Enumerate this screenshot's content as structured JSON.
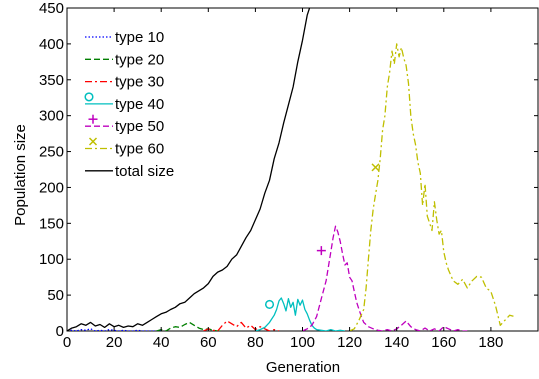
{
  "chart_data": {
    "type": "line",
    "title": "",
    "xlabel": "Generation",
    "ylabel": "Population size",
    "xlim": [
      0,
      200
    ],
    "ylim": [
      0,
      450
    ],
    "xticks": [
      0,
      20,
      40,
      60,
      80,
      100,
      120,
      140,
      160,
      180
    ],
    "yticks": [
      0,
      50,
      100,
      150,
      200,
      250,
      300,
      350,
      400,
      450
    ],
    "grid": false,
    "legend_position": "top-left",
    "series": [
      {
        "name": "type 10",
        "color": "#0000ff",
        "linestyle": "dotted",
        "marker": "",
        "x": [
          0,
          2,
          4,
          6,
          8,
          10,
          12,
          14,
          16,
          18,
          20,
          22,
          24,
          26,
          28,
          30,
          32,
          34,
          36,
          38,
          40
        ],
        "y": [
          0,
          1,
          0,
          2,
          1,
          3,
          0,
          1,
          0,
          2,
          1,
          0,
          1,
          0,
          0,
          1,
          0,
          0,
          0,
          0,
          0
        ]
      },
      {
        "name": "type 20",
        "color": "#007f00",
        "linestyle": "dashed",
        "marker": "",
        "x": [
          38,
          40,
          42,
          44,
          46,
          48,
          50,
          52,
          54,
          56,
          58,
          60,
          62,
          64,
          66
        ],
        "y": [
          0,
          2,
          0,
          4,
          6,
          5,
          9,
          12,
          8,
          4,
          2,
          3,
          1,
          0,
          0
        ]
      },
      {
        "name": "type 30",
        "color": "#ff0000",
        "linestyle": "dashdot",
        "marker": "",
        "x": [
          58,
          60,
          62,
          64,
          66,
          68,
          70,
          72,
          74,
          76,
          78,
          80,
          82,
          84,
          86,
          88,
          90
        ],
        "y": [
          0,
          3,
          1,
          0,
          8,
          14,
          10,
          6,
          12,
          4,
          8,
          2,
          6,
          3,
          0,
          2,
          0
        ]
      },
      {
        "name": "type 40",
        "color": "#00bfbf",
        "linestyle": "solid",
        "marker": "o",
        "marker_at": [
          86,
          37
        ],
        "x": [
          80,
          82,
          84,
          86,
          88,
          89,
          90,
          91,
          92,
          93,
          94,
          95,
          96,
          97,
          98,
          99,
          100,
          101,
          102,
          103,
          104,
          105,
          106,
          108,
          110,
          112,
          114,
          116,
          118
        ],
        "y": [
          0,
          2,
          5,
          12,
          22,
          30,
          42,
          46,
          38,
          28,
          45,
          33,
          40,
          22,
          44,
          36,
          43,
          30,
          24,
          15,
          8,
          4,
          2,
          1,
          0,
          2,
          0,
          1,
          0
        ]
      },
      {
        "name": "type 50",
        "color": "#bf00bf",
        "linestyle": "dashed",
        "marker": "+",
        "marker_at": [
          108,
          112
        ],
        "x": [
          100,
          102,
          104,
          106,
          108,
          110,
          112,
          113,
          114,
          115,
          116,
          117,
          118,
          119,
          120,
          121,
          122,
          123,
          124,
          125,
          126,
          128,
          130,
          132,
          134,
          136,
          138,
          140,
          142,
          144,
          146,
          148,
          150,
          152,
          154,
          156,
          158,
          160,
          162,
          164,
          166,
          168,
          170
        ],
        "y": [
          0,
          3,
          8,
          20,
          45,
          70,
          110,
          130,
          146,
          138,
          125,
          108,
          92,
          95,
          75,
          70,
          55,
          40,
          30,
          20,
          12,
          6,
          3,
          1,
          0,
          2,
          0,
          3,
          8,
          14,
          6,
          2,
          0,
          4,
          0,
          3,
          0,
          6,
          3,
          0,
          2,
          0,
          0
        ]
      },
      {
        "name": "type 60",
        "color": "#bfbf00",
        "linestyle": "dashdot",
        "marker": "x",
        "marker_at": [
          131,
          228
        ],
        "x": [
          120,
          122,
          124,
          126,
          127,
          128,
          129,
          130,
          131,
          132,
          133,
          134,
          135,
          136,
          137,
          138,
          139,
          140,
          141,
          142,
          143,
          144,
          145,
          146,
          147,
          148,
          149,
          150,
          151,
          152,
          153,
          154,
          155,
          156,
          157,
          158,
          159,
          160,
          161,
          162,
          164,
          166,
          168,
          170,
          172,
          174,
          176,
          178,
          180,
          182,
          184,
          186,
          188,
          190
        ],
        "y": [
          0,
          3,
          15,
          30,
          60,
          100,
          140,
          170,
          190,
          210,
          240,
          280,
          300,
          340,
          360,
          390,
          372,
          400,
          382,
          395,
          380,
          370,
          345,
          300,
          275,
          260,
          235,
          220,
          175,
          205,
          160,
          150,
          140,
          180,
          155,
          135,
          140,
          110,
          95,
          85,
          70,
          65,
          72,
          60,
          70,
          76,
          75,
          60,
          55,
          35,
          8,
          15,
          22,
          20
        ]
      },
      {
        "name": "total size",
        "color": "#000000",
        "linestyle": "solid",
        "marker": "",
        "x": [
          0,
          2,
          4,
          6,
          8,
          10,
          12,
          14,
          16,
          18,
          20,
          22,
          24,
          26,
          28,
          30,
          32,
          34,
          36,
          38,
          40,
          42,
          44,
          46,
          48,
          50,
          52,
          54,
          56,
          58,
          60,
          62,
          64,
          66,
          68,
          70,
          72,
          74,
          76,
          78,
          80,
          82,
          84,
          86,
          88,
          90,
          92,
          94,
          96,
          98,
          100,
          102,
          104
        ],
        "y": [
          0,
          4,
          6,
          10,
          8,
          12,
          7,
          9,
          5,
          10,
          6,
          8,
          5,
          7,
          6,
          10,
          8,
          12,
          16,
          20,
          24,
          26,
          30,
          33,
          38,
          40,
          46,
          52,
          56,
          60,
          66,
          76,
          82,
          85,
          90,
          100,
          106,
          118,
          130,
          140,
          155,
          170,
          192,
          210,
          240,
          262,
          290,
          315,
          340,
          375,
          405,
          440,
          460
        ]
      }
    ]
  }
}
